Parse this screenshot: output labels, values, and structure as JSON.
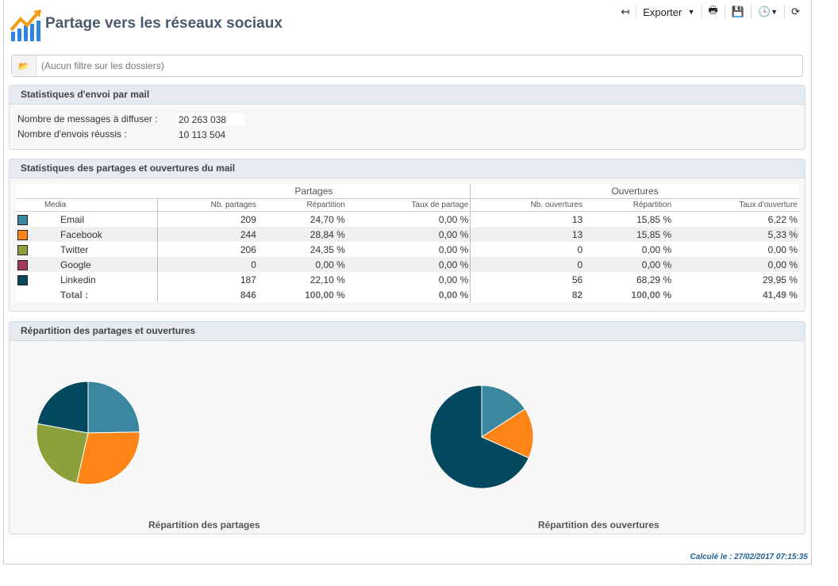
{
  "header": {
    "title": "Partage vers les réseaux sociaux",
    "export_label": "Exporter"
  },
  "filter": {
    "placeholder": "(Aucun filtre sur les dossiers)"
  },
  "mail_stats": {
    "title": "Statistiques d'envoi par mail",
    "rows": [
      {
        "label": "Nombre de messages à diffuser :",
        "value": "20 263 038"
      },
      {
        "label": "Nombre d'envois réussis :",
        "value": "10 113 504"
      }
    ]
  },
  "share_stats": {
    "title": "Statistiques des partages et ouvertures du mail",
    "group_shares": "Partages",
    "group_opens": "Ouvertures",
    "columns": [
      "Media",
      "Nb. partages",
      "Répartition",
      "Taux de partage",
      "Nb. ouvertures",
      "Répartition",
      "Taux d'ouverture"
    ],
    "rows": [
      {
        "media": "Email",
        "color": "#3b86a0",
        "cells": [
          "209",
          "24,70 %",
          "0,00 %",
          "13",
          "15,85 %",
          "6,22 %"
        ]
      },
      {
        "media": "Facebook",
        "color": "#fd8518",
        "cells": [
          "244",
          "28,84 %",
          "0,00 %",
          "13",
          "15,85 %",
          "5,33 %"
        ]
      },
      {
        "media": "Twitter",
        "color": "#8da13a",
        "cells": [
          "206",
          "24,35 %",
          "0,00 %",
          "0",
          "0,00 %",
          "0,00 %"
        ]
      },
      {
        "media": "Google",
        "color": "#a3395e",
        "cells": [
          "0",
          "0,00 %",
          "0,00 %",
          "0",
          "0,00 %",
          "0,00 %"
        ]
      },
      {
        "media": "Linkedin",
        "color": "#02485f",
        "cells": [
          "187",
          "22,10 %",
          "0,00 %",
          "56",
          "68,29 %",
          "29,95 %"
        ]
      }
    ],
    "total": {
      "label": "Total :",
      "cells": [
        "846",
        "100,00 %",
        "0,00 %",
        "82",
        "100,00 %",
        "41,49 %"
      ]
    }
  },
  "charts": {
    "title": "Répartition des partages et ouvertures",
    "chart_data": [
      {
        "type": "pie",
        "title": "Répartition des partages",
        "categories": [
          "Email",
          "Facebook",
          "Twitter",
          "Google",
          "Linkedin"
        ],
        "values": [
          24.7,
          28.84,
          24.35,
          0,
          22.1
        ]
      },
      {
        "type": "pie",
        "title": "Répartition des ouvertures",
        "categories": [
          "Email",
          "Facebook",
          "Twitter",
          "Google",
          "Linkedin"
        ],
        "values": [
          15.85,
          15.85,
          0,
          0,
          68.29
        ]
      }
    ]
  },
  "footer": {
    "computed": "Calculé le : 27/02/2017 07:15:35"
  }
}
